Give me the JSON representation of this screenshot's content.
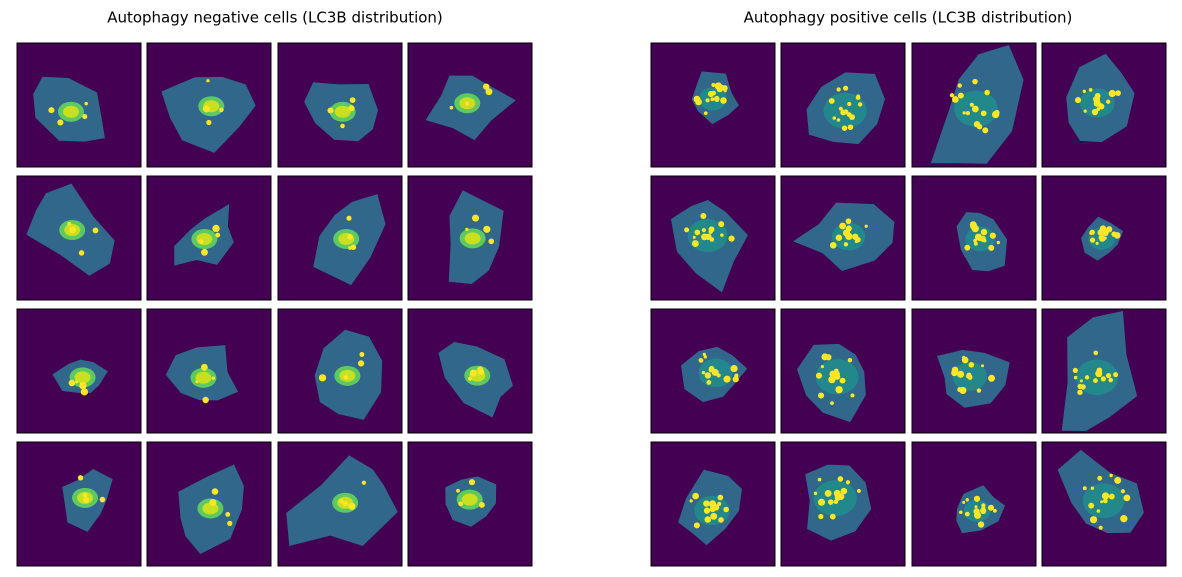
{
  "panels": [
    {
      "title": "Autophagy negative cells (LC3B distribution)"
    },
    {
      "title": "Autophagy positive cells (LC3B distribution)"
    }
  ]
}
